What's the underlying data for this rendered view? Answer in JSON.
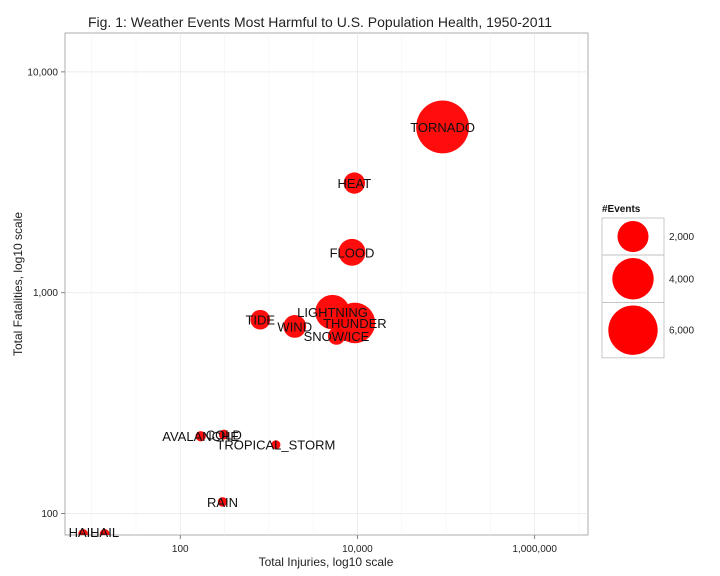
{
  "chart_data": {
    "type": "scatter",
    "title": "Fig. 1: Weather Events Most Harmful to U.S. Population Health, 1950-2011",
    "xlabel": "Total Injuries, log10 scale",
    "ylabel": "Total Fatalities, log10 scale",
    "x_scale": "log10",
    "y_scale": "log10",
    "xlim": [
      5,
      4000000
    ],
    "ylim": [
      80,
      15000
    ],
    "x_ticks": [
      100,
      10000,
      1000000
    ],
    "x_tick_labels": [
      "100",
      "10,000",
      "1,000,000"
    ],
    "y_ticks": [
      100,
      1000,
      10000
    ],
    "y_tick_labels": [
      "100",
      "1,000",
      "10,000"
    ],
    "grid": true,
    "point_color": "#ff0000",
    "legend": {
      "title": "#Events",
      "placement": "right",
      "entries": [
        {
          "label": "2,000",
          "value": 2000
        },
        {
          "label": "4,000",
          "value": 4000
        },
        {
          "label": "6,000",
          "value": 6000
        }
      ]
    },
    "points": [
      {
        "label": "TORNADO",
        "x": 91364,
        "y": 5633,
        "events": 7000
      },
      {
        "label": "HEAT",
        "x": 9224,
        "y": 3138,
        "events": 750
      },
      {
        "label": "FLOOD",
        "x": 8674,
        "y": 1524,
        "events": 1400
      },
      {
        "label": "LIGHTNING",
        "x": 5230,
        "y": 817,
        "events": 2600
      },
      {
        "label": "THUNDER",
        "x": 9353,
        "y": 730,
        "events": 3800
      },
      {
        "label": "TIDE",
        "x": 800,
        "y": 755,
        "events": 600
      },
      {
        "label": "WIND",
        "x": 1960,
        "y": 704,
        "events": 900
      },
      {
        "label": "SNOW/ICE",
        "x": 5800,
        "y": 636,
        "events": 400
      },
      {
        "label": "AVALANCHE",
        "x": 170,
        "y": 224,
        "events": 60
      },
      {
        "label": "COLD",
        "x": 310,
        "y": 228,
        "events": 50
      },
      {
        "label": "TROPICAL_STORM",
        "x": 1200,
        "y": 205,
        "events": 30
      },
      {
        "label": "RAIN",
        "x": 300,
        "y": 113,
        "events": 40
      },
      {
        "label": "HAIL",
        "x": 8,
        "y": 81,
        "events": 40
      },
      {
        "label": "HAIL",
        "x": 14,
        "y": 81,
        "events": 40
      }
    ]
  }
}
